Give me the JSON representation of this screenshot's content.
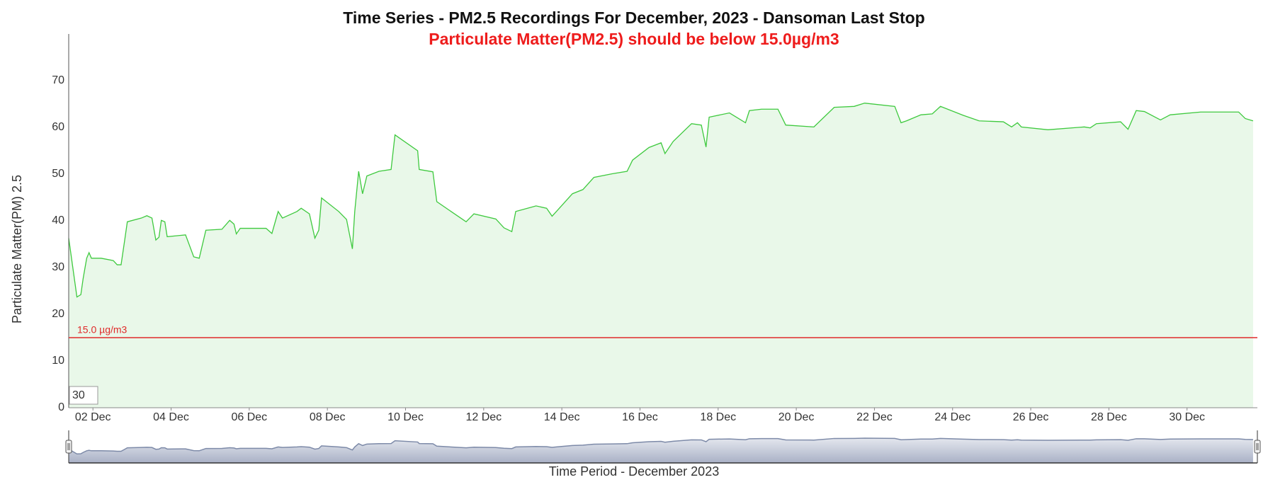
{
  "chart_data": {
    "type": "area",
    "title": "Time Series - PM2.5 Recordings For December, 2023 - Dansoman Last Stop",
    "subtitle": "Particulate Matter(PM2.5) should be below 15.0µg/m3",
    "ylabel": "Particulate Matter(PM) 2.5",
    "xlabel": "Time Period - December 2023",
    "range_input": "30",
    "x": [
      1.38,
      1.59,
      1.69,
      1.75,
      1.84,
      1.9,
      1.96,
      2.21,
      2.52,
      2.62,
      2.72,
      2.82,
      2.88,
      3.24,
      3.38,
      3.51,
      3.61,
      3.69,
      3.75,
      3.84,
      3.9,
      4.37,
      4.58,
      4.72,
      4.89,
      5.3,
      5.5,
      5.61,
      5.67,
      5.77,
      6.43,
      6.58,
      6.74,
      6.85,
      7.22,
      7.33,
      7.54,
      7.68,
      7.78,
      7.85,
      8.29,
      8.49,
      8.64,
      8.7,
      8.8,
      8.9,
      9.01,
      9.32,
      9.63,
      9.73,
      10.31,
      10.35,
      10.7,
      10.8,
      11.55,
      11.75,
      12.31,
      12.52,
      12.72,
      12.82,
      13.34,
      13.61,
      13.75,
      13.86,
      14.27,
      14.54,
      14.82,
      15.3,
      15.67,
      15.81,
      16.23,
      16.54,
      16.64,
      16.85,
      17.32,
      17.57,
      17.69,
      17.77,
      18.29,
      18.7,
      18.8,
      19.11,
      19.53,
      19.73,
      20.45,
      20.97,
      21.48,
      21.75,
      22.52,
      22.68,
      22.82,
      23.19,
      23.48,
      23.69,
      24.27,
      24.68,
      25.3,
      25.51,
      25.66,
      25.76,
      26.44,
      27.37,
      27.52,
      27.68,
      28.3,
      28.49,
      28.7,
      28.91,
      29.32,
      29.57,
      30.35,
      31.32,
      31.49,
      31.69
    ],
    "series": [
      {
        "name": "PM2.5",
        "color": "#3ec93e",
        "fill_color": "#e9f8e9",
        "values": [
          36.3,
          23.7,
          24.2,
          27.7,
          32,
          33.2,
          32,
          32,
          31.5,
          30.6,
          30.6,
          36.3,
          39.8,
          40.6,
          41.1,
          40.6,
          35.9,
          36.5,
          40.1,
          39.8,
          36.6,
          37,
          32.3,
          32,
          38,
          38.2,
          40.1,
          39.3,
          37.2,
          38.4,
          38.4,
          37.3,
          42,
          40.6,
          42,
          42.7,
          41.5,
          36.3,
          38,
          44.9,
          42,
          40.3,
          34,
          42,
          50.6,
          45.8,
          49.6,
          50.6,
          51,
          58.4,
          55,
          51,
          50.5,
          44.1,
          39.8,
          41.5,
          40.4,
          38.5,
          37.7,
          42,
          43.2,
          42.7,
          41,
          42,
          45.8,
          46.7,
          49.3,
          50.1,
          50.6,
          53,
          55.7,
          56.7,
          54.4,
          57,
          60.8,
          60.5,
          55.8,
          62.2,
          63.1,
          61,
          63.6,
          63.9,
          63.9,
          60.5,
          60.1,
          64.3,
          64.5,
          65.2,
          64.5,
          61,
          61.4,
          62.7,
          62.9,
          64.5,
          62.6,
          61.4,
          61.2,
          60.1,
          61,
          60.1,
          59.5,
          60.1,
          59.9,
          60.8,
          61.2,
          59.6,
          63.6,
          63.4,
          61.6,
          62.7,
          63.3,
          63.3,
          61.9,
          61.4
        ]
      }
    ],
    "threshold": {
      "value": 15,
      "label": "15.0 µg/m3",
      "color": "#e02a2a"
    },
    "xlim": [
      1.38,
      31.8
    ],
    "xticks": [
      {
        "value": 2,
        "label": "02 Dec"
      },
      {
        "value": 4,
        "label": "04 Dec"
      },
      {
        "value": 6,
        "label": "06 Dec"
      },
      {
        "value": 8,
        "label": "08 Dec"
      },
      {
        "value": 10,
        "label": "10 Dec"
      },
      {
        "value": 12,
        "label": "12 Dec"
      },
      {
        "value": 14,
        "label": "14 Dec"
      },
      {
        "value": 16,
        "label": "16 Dec"
      },
      {
        "value": 18,
        "label": "18 Dec"
      },
      {
        "value": 20,
        "label": "20 Dec"
      },
      {
        "value": 22,
        "label": "22 Dec"
      },
      {
        "value": 24,
        "label": "24 Dec"
      },
      {
        "value": 26,
        "label": "26 Dec"
      },
      {
        "value": 28,
        "label": "28 Dec"
      },
      {
        "value": 30,
        "label": "30 Dec"
      }
    ],
    "ylim": [
      0,
      80
    ],
    "yticks": [
      0,
      10,
      20,
      30,
      40,
      50,
      60,
      70
    ],
    "grid": false
  }
}
